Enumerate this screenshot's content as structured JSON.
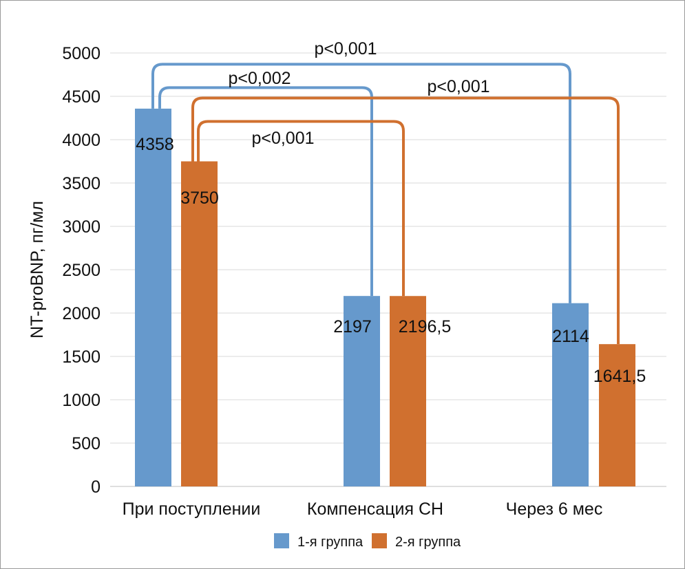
{
  "chart_data": {
    "type": "bar",
    "title": "",
    "xlabel": "",
    "ylabel": "NT-proBNP, пг/мл",
    "ylim": [
      0,
      5000
    ],
    "ytick_step": 500,
    "yticks": [
      "0",
      "500",
      "1000",
      "1500",
      "2000",
      "2500",
      "3000",
      "3500",
      "4000",
      "4500",
      "5000"
    ],
    "grid": true,
    "legend_position": "bottom",
    "categories": [
      "При поступлении",
      "Компенсация СН",
      "Через 6 мес"
    ],
    "series": [
      {
        "name": "1-я группа",
        "color": "#6699cc",
        "values": [
          4358,
          2197,
          2114
        ],
        "labels": [
          "4358",
          "2197",
          "2114"
        ]
      },
      {
        "name": "2-я группа",
        "color": "#d0702f",
        "values": [
          3750,
          2196.5,
          1641.5
        ],
        "labels": [
          "3750",
          "2196,5",
          "1641,5"
        ]
      }
    ],
    "annotations": [
      {
        "series": 0,
        "from": 0,
        "to": 2,
        "level": 4870,
        "text": "p<0,001"
      },
      {
        "series": 0,
        "from": 0,
        "to": 1,
        "level": 4600,
        "text": "p<0,002"
      },
      {
        "series": 1,
        "from": 0,
        "to": 2,
        "level": 4480,
        "text": "p<0,001"
      },
      {
        "series": 1,
        "from": 0,
        "to": 1,
        "level": 4210,
        "text": "p<0,001"
      }
    ]
  }
}
